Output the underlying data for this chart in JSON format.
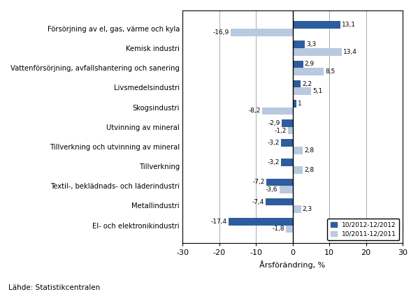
{
  "categories": [
    "Försörjning av el, gas, värme och kyla",
    "Kemisk industri",
    "Vattenförsörjning, avfallshantering och sanering",
    "Livsmedelsindustri",
    "Skogsindustri",
    "Utvinning av mineral",
    "Tillverkning och utvinning av mineral",
    "Tillverkning",
    "Textil-, beklädnads- och läderindustri",
    "Metallindustri",
    "El- och elektronikindustri"
  ],
  "series1_values": [
    13.1,
    3.3,
    2.9,
    2.2,
    1.0,
    -2.9,
    -3.2,
    -3.2,
    -7.2,
    -7.4,
    -17.4
  ],
  "series2_values": [
    -16.9,
    13.4,
    8.5,
    5.1,
    -8.2,
    -1.2,
    2.8,
    2.8,
    -3.6,
    2.3,
    -1.8
  ],
  "series1_label": "10/2012-12/2012",
  "series2_label": "10/2011-12/2011",
  "series1_color": "#2E5D9F",
  "series2_color": "#B8C9E0",
  "xlabel": "Årsförändring, %",
  "xlim": [
    -30,
    30
  ],
  "xticks": [
    -30,
    -20,
    -10,
    0,
    10,
    20,
    30
  ],
  "footnote": "Lähde: Statistikcentralen",
  "bar_height": 0.38
}
